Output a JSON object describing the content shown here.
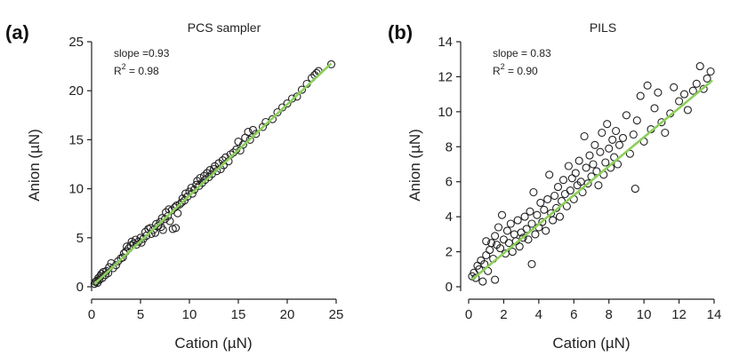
{
  "chart_data": [
    {
      "type": "scatter",
      "panel_label": "(a)",
      "title": "PCS sampler",
      "xlabel": "Cation (µN)",
      "ylabel": "Anion (µN)",
      "xlim": [
        0,
        25
      ],
      "ylim": [
        0,
        25
      ],
      "xticks": [
        0,
        5,
        10,
        15,
        20,
        25
      ],
      "yticks": [
        0,
        5,
        10,
        15,
        20,
        25
      ],
      "annotation": {
        "slope_text": "slope =0.93",
        "r2_label": "R",
        "r2_sup": "2",
        "r2_value": " = 0.98"
      },
      "fit": {
        "slope": 0.93,
        "intercept": 0.0,
        "x_range": [
          0.3,
          24.5
        ]
      },
      "points": [
        [
          0.3,
          0.3
        ],
        [
          0.4,
          0.5
        ],
        [
          0.5,
          0.6
        ],
        [
          0.6,
          0.4
        ],
        [
          0.7,
          0.9
        ],
        [
          0.8,
          0.7
        ],
        [
          0.9,
          1.1
        ],
        [
          1.0,
          1.3
        ],
        [
          1.1,
          0.9
        ],
        [
          1.2,
          1.5
        ],
        [
          1.4,
          1.2
        ],
        [
          1.5,
          1.6
        ],
        [
          1.7,
          1.4
        ],
        [
          1.8,
          2.0
        ],
        [
          2.0,
          2.4
        ],
        [
          2.2,
          1.9
        ],
        [
          2.5,
          2.2
        ],
        [
          2.7,
          2.6
        ],
        [
          3.0,
          2.9
        ],
        [
          3.2,
          3.0
        ],
        [
          3.3,
          3.4
        ],
        [
          3.5,
          3.6
        ],
        [
          3.6,
          4.1
        ],
        [
          3.8,
          3.9
        ],
        [
          4.0,
          4.2
        ],
        [
          4.1,
          4.6
        ],
        [
          4.3,
          4.4
        ],
        [
          4.5,
          4.8
        ],
        [
          4.6,
          4.3
        ],
        [
          4.8,
          4.6
        ],
        [
          5.0,
          5.0
        ],
        [
          5.1,
          4.5
        ],
        [
          5.3,
          4.9
        ],
        [
          5.5,
          5.6
        ],
        [
          5.6,
          5.2
        ],
        [
          5.8,
          5.9
        ],
        [
          6.0,
          6.0
        ],
        [
          6.1,
          5.4
        ],
        [
          6.3,
          5.8
        ],
        [
          6.5,
          5.5
        ],
        [
          6.6,
          6.4
        ],
        [
          6.8,
          6.2
        ],
        [
          7.0,
          6.6
        ],
        [
          7.1,
          6.1
        ],
        [
          7.2,
          7.0
        ],
        [
          7.3,
          5.8
        ],
        [
          7.5,
          6.9
        ],
        [
          7.6,
          7.6
        ],
        [
          7.8,
          7.2
        ],
        [
          7.9,
          7.9
        ],
        [
          8.0,
          6.7
        ],
        [
          8.2,
          7.8
        ],
        [
          8.3,
          5.9
        ],
        [
          8.5,
          8.1
        ],
        [
          8.6,
          6.0
        ],
        [
          8.7,
          8.3
        ],
        [
          8.8,
          7.5
        ],
        [
          9.0,
          8.4
        ],
        [
          9.2,
          8.6
        ],
        [
          9.3,
          9.0
        ],
        [
          9.5,
          8.8
        ],
        [
          9.6,
          9.5
        ],
        [
          9.8,
          9.2
        ],
        [
          10.0,
          9.7
        ],
        [
          10.2,
          10.1
        ],
        [
          10.3,
          9.5
        ],
        [
          10.5,
          9.9
        ],
        [
          10.7,
          10.4
        ],
        [
          10.8,
          10.8
        ],
        [
          11.0,
          10.3
        ],
        [
          11.1,
          11.1
        ],
        [
          11.3,
          10.6
        ],
        [
          11.5,
          11.3
        ],
        [
          11.6,
          10.9
        ],
        [
          11.8,
          11.6
        ],
        [
          12.0,
          11.2
        ],
        [
          12.1,
          11.9
        ],
        [
          12.3,
          11.5
        ],
        [
          12.5,
          12.0
        ],
        [
          12.6,
          12.3
        ],
        [
          12.8,
          11.8
        ],
        [
          13.0,
          12.6
        ],
        [
          13.2,
          12.0
        ],
        [
          13.4,
          12.9
        ],
        [
          13.5,
          12.4
        ],
        [
          13.7,
          13.2
        ],
        [
          14.0,
          12.8
        ],
        [
          14.2,
          13.5
        ],
        [
          14.5,
          13.7
        ],
        [
          14.8,
          14.0
        ],
        [
          15.0,
          14.8
        ],
        [
          15.2,
          13.9
        ],
        [
          15.5,
          14.5
        ],
        [
          15.7,
          15.2
        ],
        [
          16.0,
          15.8
        ],
        [
          16.2,
          15.0
        ],
        [
          16.5,
          16.0
        ],
        [
          16.8,
          15.6
        ],
        [
          17.5,
          16.3
        ],
        [
          17.8,
          16.8
        ],
        [
          18.5,
          17.1
        ],
        [
          19.0,
          17.8
        ],
        [
          19.5,
          18.3
        ],
        [
          20.0,
          18.7
        ],
        [
          20.5,
          19.2
        ],
        [
          21.0,
          19.4
        ],
        [
          21.5,
          20.1
        ],
        [
          22.0,
          20.7
        ],
        [
          22.5,
          21.3
        ],
        [
          22.8,
          21.6
        ],
        [
          23.0,
          21.8
        ],
        [
          23.2,
          22.0
        ],
        [
          24.5,
          22.7
        ]
      ]
    },
    {
      "type": "scatter",
      "panel_label": "(b)",
      "title": "PILS",
      "xlabel": "Cation (µN)",
      "ylabel": "Anion (µN)",
      "xlim": [
        0,
        14
      ],
      "ylim": [
        0,
        14
      ],
      "xticks": [
        0,
        2,
        4,
        6,
        8,
        10,
        12,
        14
      ],
      "yticks": [
        0,
        2,
        4,
        6,
        8,
        10,
        12,
        14
      ],
      "annotation": {
        "slope_text": "slope = 0.83",
        "r2_label": "R",
        "r2_sup": "2",
        "r2_value": " = 0.90"
      },
      "fit": {
        "slope": 0.83,
        "intercept": 0.25,
        "x_range": [
          0.2,
          13.9
        ]
      },
      "points": [
        [
          0.2,
          0.6
        ],
        [
          0.3,
          0.8
        ],
        [
          0.4,
          0.5
        ],
        [
          0.5,
          1.2
        ],
        [
          0.6,
          1.0
        ],
        [
          0.7,
          1.5
        ],
        [
          0.8,
          0.3
        ],
        [
          0.9,
          1.3
        ],
        [
          1.0,
          2.6
        ],
        [
          1.0,
          1.8
        ],
        [
          1.1,
          0.9
        ],
        [
          1.2,
          2.1
        ],
        [
          1.3,
          2.5
        ],
        [
          1.4,
          1.6
        ],
        [
          1.5,
          2.9
        ],
        [
          1.5,
          0.4
        ],
        [
          1.6,
          2.4
        ],
        [
          1.7,
          3.4
        ],
        [
          1.8,
          2.2
        ],
        [
          1.9,
          4.1
        ],
        [
          2.0,
          2.7
        ],
        [
          2.1,
          1.9
        ],
        [
          2.2,
          3.2
        ],
        [
          2.3,
          2.5
        ],
        [
          2.4,
          3.6
        ],
        [
          2.5,
          2.0
        ],
        [
          2.6,
          3.0
        ],
        [
          2.7,
          2.6
        ],
        [
          2.8,
          3.8
        ],
        [
          2.9,
          2.3
        ],
        [
          3.0,
          3.1
        ],
        [
          3.1,
          2.8
        ],
        [
          3.2,
          4.0
        ],
        [
          3.3,
          3.3
        ],
        [
          3.4,
          2.7
        ],
        [
          3.5,
          4.3
        ],
        [
          3.6,
          1.3
        ],
        [
          3.6,
          3.6
        ],
        [
          3.7,
          5.4
        ],
        [
          3.8,
          3.0
        ],
        [
          3.9,
          4.1
        ],
        [
          4.0,
          3.4
        ],
        [
          4.1,
          4.8
        ],
        [
          4.2,
          3.7
        ],
        [
          4.3,
          4.4
        ],
        [
          4.4,
          3.2
        ],
        [
          4.5,
          5.0
        ],
        [
          4.6,
          6.4
        ],
        [
          4.7,
          4.2
        ],
        [
          4.8,
          3.8
        ],
        [
          4.9,
          5.2
        ],
        [
          5.0,
          4.5
        ],
        [
          5.1,
          5.7
        ],
        [
          5.2,
          4.0
        ],
        [
          5.3,
          4.9
        ],
        [
          5.4,
          6.1
        ],
        [
          5.5,
          5.3
        ],
        [
          5.6,
          4.6
        ],
        [
          5.7,
          6.9
        ],
        [
          5.8,
          5.5
        ],
        [
          5.9,
          6.2
        ],
        [
          6.0,
          5.0
        ],
        [
          6.1,
          6.5
        ],
        [
          6.2,
          5.8
        ],
        [
          6.3,
          7.2
        ],
        [
          6.4,
          6.0
        ],
        [
          6.5,
          5.4
        ],
        [
          6.6,
          8.6
        ],
        [
          6.7,
          6.8
        ],
        [
          6.8,
          5.9
        ],
        [
          6.9,
          7.5
        ],
        [
          7.0,
          6.3
        ],
        [
          7.1,
          7.0
        ],
        [
          7.2,
          8.1
        ],
        [
          7.3,
          6.6
        ],
        [
          7.4,
          5.8
        ],
        [
          7.5,
          7.7
        ],
        [
          7.6,
          8.8
        ],
        [
          7.7,
          6.4
        ],
        [
          7.8,
          7.1
        ],
        [
          7.9,
          9.3
        ],
        [
          8.0,
          7.9
        ],
        [
          8.1,
          6.8
        ],
        [
          8.2,
          8.4
        ],
        [
          8.3,
          7.4
        ],
        [
          8.4,
          8.9
        ],
        [
          8.5,
          7.0
        ],
        [
          8.6,
          8.1
        ],
        [
          8.8,
          8.5
        ],
        [
          9.0,
          9.8
        ],
        [
          9.2,
          7.6
        ],
        [
          9.4,
          8.7
        ],
        [
          9.5,
          5.6
        ],
        [
          9.6,
          9.5
        ],
        [
          9.8,
          10.9
        ],
        [
          10.0,
          8.3
        ],
        [
          10.2,
          11.5
        ],
        [
          10.4,
          9.0
        ],
        [
          10.6,
          10.2
        ],
        [
          10.8,
          11.1
        ],
        [
          11.0,
          9.4
        ],
        [
          11.2,
          8.8
        ],
        [
          11.5,
          9.9
        ],
        [
          11.7,
          11.4
        ],
        [
          12.0,
          10.6
        ],
        [
          12.3,
          11.0
        ],
        [
          12.5,
          10.1
        ],
        [
          12.8,
          11.2
        ],
        [
          13.0,
          11.6
        ],
        [
          13.2,
          12.6
        ],
        [
          13.4,
          11.3
        ],
        [
          13.6,
          11.9
        ],
        [
          13.8,
          12.3
        ]
      ]
    }
  ]
}
